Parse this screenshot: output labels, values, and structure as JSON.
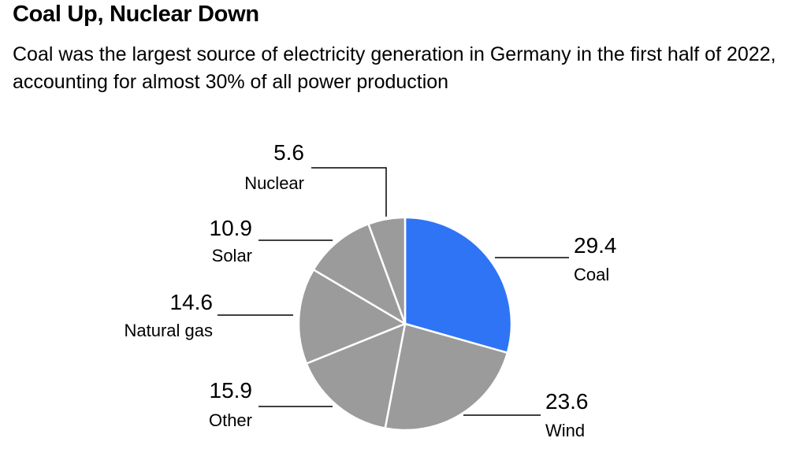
{
  "title": "Coal Up, Nuclear Down",
  "subtitle": "Coal was the largest source of electricity generation in Germany in the first half of 2022, accounting for almost 30% of all power production",
  "chart_data": {
    "type": "pie",
    "title": "Coal Up, Nuclear Down",
    "subtitle": "Coal was the largest source of electricity generation in Germany in the first half of 2022, accounting for almost 30% of all power production",
    "start": "top, clockwise",
    "slices": [
      {
        "label": "Coal",
        "value": 29.4,
        "display": "29.4",
        "color": "#2e74f5"
      },
      {
        "label": "Wind",
        "value": 23.6,
        "display": "23.6",
        "color": "#9b9b9b"
      },
      {
        "label": "Other",
        "value": 15.9,
        "display": "15.9",
        "color": "#9b9b9b"
      },
      {
        "label": "Natural gas",
        "value": 14.6,
        "display": "14.6",
        "color": "#9b9b9b"
      },
      {
        "label": "Solar",
        "value": 10.9,
        "display": "10.9",
        "color": "#9b9b9b"
      },
      {
        "label": "Nuclear",
        "value": 5.6,
        "display": "5.6",
        "color": "#9b9b9b"
      }
    ]
  }
}
